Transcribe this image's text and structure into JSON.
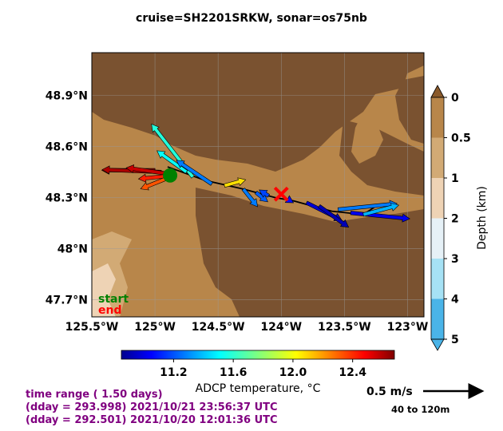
{
  "title": "cruise=SH2201SRKW,   sonar=os75nb",
  "map": {
    "lat_ticks": [
      "48.9°N",
      "48.6°N",
      "48.3°N",
      "48°N",
      "47.7°N"
    ],
    "lon_ticks": [
      "125.5°W",
      "125°W",
      "124.5°W",
      "124°W",
      "123.5°W",
      "123°W"
    ],
    "lat_values": [
      48.9,
      48.6,
      48.3,
      48.0,
      47.7
    ],
    "lon_values": [
      -125.5,
      -125.0,
      -124.5,
      -124.0,
      -123.5,
      -123.0
    ],
    "lon_range": [
      -125.5,
      -122.87
    ],
    "lat_range": [
      47.6,
      49.15
    ],
    "start_label": "start",
    "end_label": "end",
    "start_color": "#008000",
    "end_color": "#ff0000",
    "land_color": "#7a5230",
    "shallow_color": "#b8864a"
  },
  "depth_colorbar": {
    "label": "Depth (km)",
    "ticks": [
      "0",
      "0.5",
      "1",
      "2",
      "3",
      "4",
      "5"
    ],
    "colors": [
      "#b8864a",
      "#d2aa75",
      "#eed3b5",
      "#e6f1f7",
      "#a6e2f5",
      "#4ab4e8"
    ]
  },
  "temp_colorbar": {
    "label": "ADCP temperature, °C",
    "ticks": [
      "11.2",
      "11.6",
      "12.0",
      "12.4"
    ],
    "tick_values": [
      11.2,
      11.6,
      12.0,
      12.4
    ],
    "range": [
      10.85,
      12.68
    ]
  },
  "scale": {
    "label": "0.5 m/s",
    "depth_range": "40 to 120m"
  },
  "info": {
    "line1": "time range ( 1.50 days)",
    "line2": "(dday = 293.998) 2021/10/21 23:56:37 UTC",
    "line3": "(dday = 292.501) 2021/10/20 12:01:36 UTC"
  },
  "chart_data": {
    "type": "scatter",
    "title": "cruise=SH2201SRKW,   sonar=os75nb",
    "xlabel": "",
    "ylabel": "",
    "xlim": [
      -125.5,
      -122.87
    ],
    "ylim": [
      47.6,
      49.15
    ],
    "track": [
      [
        -124.9,
        48.48
      ],
      [
        -124.6,
        48.4
      ],
      [
        -124.3,
        48.35
      ],
      [
        -124.05,
        48.3
      ],
      [
        -123.9,
        48.28
      ],
      [
        -123.6,
        48.22
      ],
      [
        -123.35,
        48.2
      ],
      [
        -123.25,
        48.25
      ]
    ],
    "start": [
      -124.88,
      48.43
    ],
    "end": [
      -124.0,
      48.32
    ],
    "vectors": [
      {
        "lon": -125.0,
        "lat": 48.46,
        "u": -0.45,
        "v": 0.0,
        "temp": 12.65
      },
      {
        "lon": -124.95,
        "lat": 48.45,
        "u": -0.5,
        "v": 0.02,
        "temp": 12.6
      },
      {
        "lon": -124.9,
        "lat": 48.44,
        "u": -0.35,
        "v": 0.05,
        "temp": 12.55
      },
      {
        "lon": -124.85,
        "lat": 48.43,
        "u": -0.3,
        "v": -0.03,
        "temp": 12.4
      },
      {
        "lon": -124.88,
        "lat": 48.42,
        "u": -0.25,
        "v": -0.1,
        "temp": 12.3
      },
      {
        "lon": -124.7,
        "lat": 48.42,
        "u": -0.35,
        "v": 0.45,
        "temp": 11.6
      },
      {
        "lon": -124.75,
        "lat": 48.45,
        "u": -0.25,
        "v": 0.18,
        "temp": 11.55
      },
      {
        "lon": -124.55,
        "lat": 48.38,
        "u": -0.3,
        "v": 0.2,
        "temp": 11.3
      },
      {
        "lon": -124.45,
        "lat": 48.37,
        "u": 0.18,
        "v": 0.05,
        "temp": 12.05
      },
      {
        "lon": -124.3,
        "lat": 48.35,
        "u": 0.12,
        "v": -0.15,
        "temp": 11.3
      },
      {
        "lon": -124.2,
        "lat": 48.33,
        "u": 0.1,
        "v": -0.08,
        "temp": 11.25
      },
      {
        "lon": -124.1,
        "lat": 48.31,
        "u": -0.08,
        "v": 0.05,
        "temp": 11.2
      },
      {
        "lon": -123.95,
        "lat": 48.29,
        "u": 0.05,
        "v": -0.03,
        "temp": 11.1
      },
      {
        "lon": -123.8,
        "lat": 48.27,
        "u": 0.3,
        "v": -0.15,
        "temp": 11.0
      },
      {
        "lon": -123.7,
        "lat": 48.25,
        "u": 0.25,
        "v": -0.18,
        "temp": 10.95
      },
      {
        "lon": -123.55,
        "lat": 48.23,
        "u": 0.5,
        "v": 0.05,
        "temp": 11.3
      },
      {
        "lon": -123.45,
        "lat": 48.21,
        "u": 0.5,
        "v": -0.05,
        "temp": 11.05
      },
      {
        "lon": -123.35,
        "lat": 48.2,
        "u": 0.3,
        "v": 0.08,
        "temp": 11.4
      }
    ]
  }
}
